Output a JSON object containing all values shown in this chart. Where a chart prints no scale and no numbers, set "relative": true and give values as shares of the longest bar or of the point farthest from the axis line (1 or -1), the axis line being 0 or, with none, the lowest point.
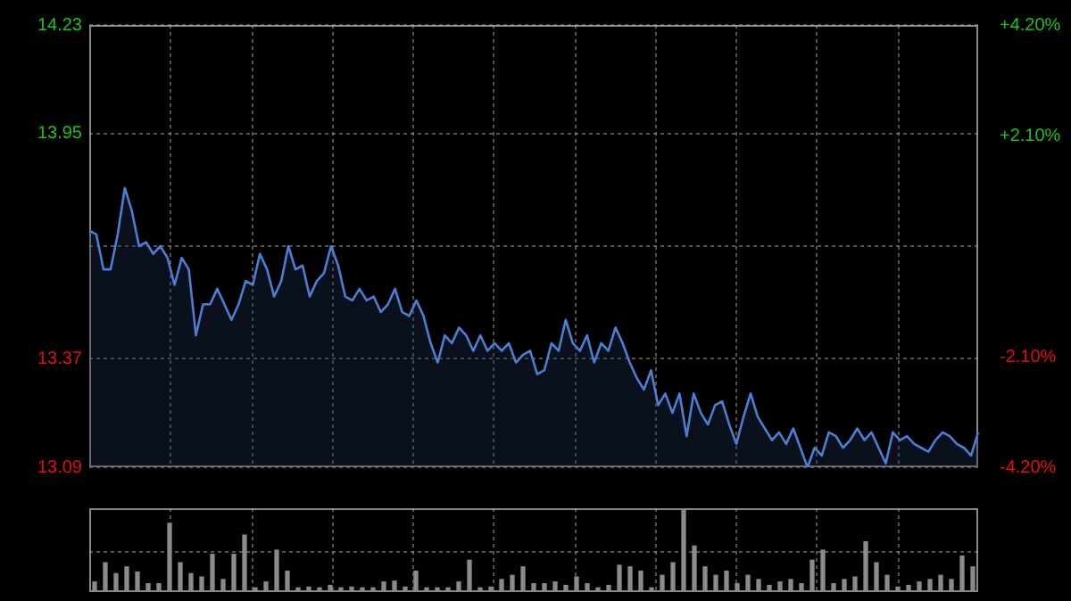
{
  "chart_data": [
    {
      "type": "area",
      "categories": [
        null,
        null,
        null,
        null,
        null,
        null,
        null,
        null,
        null,
        null,
        null,
        null,
        null,
        null,
        null,
        null,
        null,
        null,
        null,
        null,
        null,
        null,
        null,
        null,
        null,
        null,
        null,
        null,
        null,
        null,
        null,
        null,
        null,
        null,
        null,
        null,
        null,
        null,
        null,
        null,
        null,
        null,
        null,
        null,
        null,
        null,
        null,
        null,
        null,
        null,
        null,
        null,
        null,
        null,
        null,
        null,
        null,
        null,
        null,
        null,
        null,
        null,
        null,
        null,
        null,
        null,
        null,
        null,
        null,
        null,
        null,
        null,
        null,
        null,
        null,
        null,
        null,
        null,
        null,
        null,
        null,
        null,
        null,
        null,
        null,
        null,
        null,
        null,
        null,
        null,
        null,
        null,
        null,
        null,
        null,
        null,
        null,
        null,
        null,
        null,
        null,
        null,
        null,
        null,
        null,
        null,
        null,
        null,
        null,
        null,
        null,
        null,
        null,
        null,
        null,
        null,
        null,
        null,
        null,
        null,
        null,
        null,
        null,
        null,
        null,
        null
      ],
      "series": [
        {
          "color": "#4a7fd4",
          "values": [
            13.7,
            13.69,
            13.6,
            13.6,
            13.69,
            13.81,
            13.75,
            13.66,
            13.67,
            13.64,
            13.66,
            13.63,
            13.56,
            13.63,
            13.6,
            13.43,
            13.51,
            13.51,
            13.55,
            13.51,
            13.47,
            13.51,
            13.57,
            13.56,
            13.64,
            13.6,
            13.53,
            13.57,
            13.66,
            13.6,
            13.61,
            13.53,
            13.57,
            13.59,
            13.66,
            13.61,
            13.53,
            13.52,
            13.55,
            13.52,
            13.53,
            13.49,
            13.51,
            13.55,
            13.49,
            13.48,
            13.52,
            13.48,
            13.41,
            13.36,
            13.43,
            13.41,
            13.45,
            13.43,
            13.39,
            13.43,
            13.39,
            13.41,
            13.39,
            13.41,
            13.36,
            13.38,
            13.39,
            13.33,
            13.34,
            13.41,
            13.39,
            13.47,
            13.41,
            13.39,
            13.43,
            13.36,
            13.41,
            13.39,
            13.45,
            13.41,
            13.36,
            13.32,
            13.29,
            13.34,
            13.25,
            13.28,
            13.23,
            13.28,
            13.17,
            13.28,
            13.23,
            13.2,
            13.25,
            13.26,
            13.2,
            13.15,
            13.22,
            13.28,
            13.22,
            13.19,
            13.16,
            13.18,
            13.15,
            13.19,
            13.14,
            13.09,
            13.14,
            13.12,
            13.18,
            13.17,
            13.14,
            13.16,
            13.19,
            13.16,
            13.18,
            13.14,
            13.1,
            13.18,
            13.16,
            13.17,
            13.15,
            13.14,
            13.13,
            13.16,
            13.18,
            13.17,
            13.15,
            13.14,
            13.12,
            13.18
          ]
        }
      ],
      "ylim": [
        13.09,
        14.23
      ],
      "yticks": [
        13.09,
        13.37,
        {
          "value": 13.66,
          "label": null
        },
        13.95,
        14.23
      ],
      "y2lim": [
        -4.2,
        4.2
      ],
      "y2ticks": [
        {
          "value": -4.2,
          "label": "-4.20%"
        },
        {
          "value": -2.1,
          "label": "-2.10%"
        },
        {
          "value": 0,
          "label": null
        },
        {
          "value": 2.1,
          "label": "+2.10%"
        },
        {
          "value": 4.2,
          "label": "+4.20%"
        }
      ],
      "grid": true,
      "legend": false
    },
    {
      "type": "bar",
      "relative": true,
      "categories": [
        null,
        null,
        null,
        null,
        null,
        null,
        null,
        null,
        null,
        null,
        null,
        null,
        null,
        null,
        null,
        null,
        null,
        null,
        null,
        null,
        null,
        null,
        null,
        null,
        null,
        null,
        null,
        null,
        null,
        null,
        null,
        null,
        null,
        null,
        null,
        null,
        null,
        null,
        null,
        null,
        null,
        null,
        null,
        null,
        null,
        null,
        null,
        null,
        null,
        null,
        null,
        null,
        null,
        null,
        null,
        null,
        null,
        null,
        null,
        null,
        null,
        null,
        null,
        null,
        null,
        null,
        null,
        null,
        null,
        null,
        null,
        null,
        null,
        null,
        null,
        null,
        null,
        null,
        null,
        null,
        null,
        null,
        null
      ],
      "values": [
        0.12,
        0.35,
        0.22,
        0.3,
        0.24,
        0.1,
        0.1,
        0.82,
        0.35,
        0.22,
        0.18,
        0.45,
        0.15,
        0.45,
        0.68,
        0.05,
        0.12,
        0.5,
        0.25,
        0.05,
        0.06,
        0.05,
        0.08,
        0.05,
        0.06,
        0.05,
        0.05,
        0.12,
        0.13,
        0.06,
        0.25,
        0.05,
        0.05,
        0.05,
        0.12,
        0.38,
        0.05,
        0.06,
        0.15,
        0.2,
        0.3,
        0.1,
        0.1,
        0.12,
        0.08,
        0.18,
        0.1,
        0.05,
        0.08,
        0.32,
        0.3,
        0.25,
        0.05,
        0.2,
        0.35,
        1.0,
        0.55,
        0.3,
        0.2,
        0.25,
        0.1,
        0.2,
        0.15,
        0.08,
        0.12,
        0.15,
        0.1,
        0.38,
        0.5,
        0.1,
        0.15,
        0.18,
        0.6,
        0.35,
        0.2,
        0.06,
        0.08,
        0.12,
        0.15,
        0.2,
        0.15,
        0.43,
        0.3
      ],
      "color": "#8a8a8a",
      "grid": true,
      "legend": false
    }
  ]
}
